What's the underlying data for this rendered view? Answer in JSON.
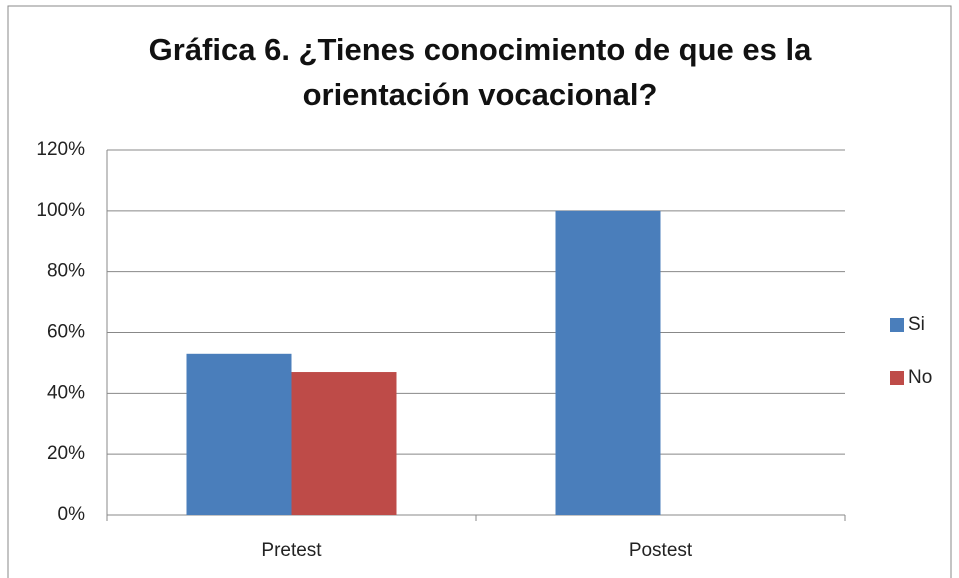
{
  "chart_data": {
    "type": "bar",
    "title": [
      "Gráfica 6. ¿Tienes conocimiento de que es la",
      "orientación vocacional?"
    ],
    "categories": [
      "Pretest",
      "Postest"
    ],
    "series": [
      {
        "name": "Si",
        "color": "#4a7ebb",
        "values": [
          53,
          100
        ]
      },
      {
        "name": "No",
        "color": "#be4b48",
        "values": [
          47,
          0
        ]
      }
    ],
    "ylim": [
      0,
      120
    ],
    "yticks": [
      {
        "value": 0,
        "label": "0%"
      },
      {
        "value": 20,
        "label": "20%"
      },
      {
        "value": 40,
        "label": "40%"
      },
      {
        "value": 60,
        "label": "60%"
      },
      {
        "value": 80,
        "label": "80%"
      },
      {
        "value": 100,
        "label": "100%"
      },
      {
        "value": 120,
        "label": "120%"
      }
    ],
    "grid": true,
    "legend": "right"
  }
}
